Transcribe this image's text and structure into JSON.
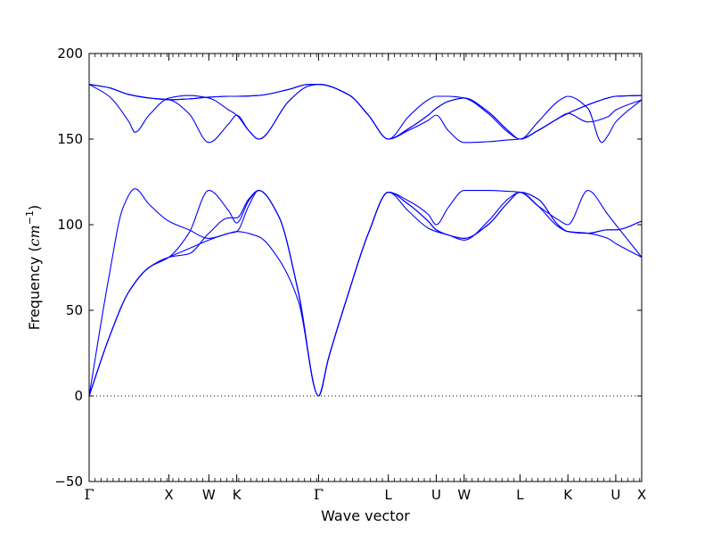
{
  "chart_data": {
    "type": "line",
    "xlabel": "Wave vector",
    "ylabel_text": "Frequency (",
    "ylabel_unit": "cm",
    "ylabel_sup": "−1",
    "ylabel_close": ")",
    "ylim": [
      -50,
      200
    ],
    "yticks": [
      -50,
      0,
      50,
      100,
      150,
      200
    ],
    "ytick_labels": [
      "−50",
      "0",
      "50",
      "100",
      "150",
      "200"
    ],
    "xlim": [
      0,
      27.7
    ],
    "high_symmetry_points": [
      {
        "label": "Γ",
        "x": 0
      },
      {
        "label": "X",
        "x": 4
      },
      {
        "label": "W",
        "x": 6
      },
      {
        "label": "K",
        "x": 7.4
      },
      {
        "label": "Γ",
        "x": 11.5
      },
      {
        "label": "L",
        "x": 15
      },
      {
        "label": "U",
        "x": 17.4
      },
      {
        "label": "W",
        "x": 18.8
      },
      {
        "label": "L",
        "x": 21.6
      },
      {
        "label": "K",
        "x": 24
      },
      {
        "label": "U",
        "x": 26.4
      },
      {
        "label": "X",
        "x": 27.7
      }
    ],
    "zero_line": true,
    "line_color": "#0000ff",
    "series": [
      {
        "points": [
          [
            0,
            0
          ],
          [
            1,
            34
          ],
          [
            2,
            61
          ],
          [
            3,
            75
          ],
          [
            4,
            81
          ],
          [
            5,
            86
          ],
          [
            6,
            91
          ],
          [
            7,
            95
          ],
          [
            7.4,
            96
          ],
          [
            8.5,
            93
          ],
          [
            9.5,
            80
          ],
          [
            10.5,
            55
          ],
          [
            11.5,
            0
          ],
          [
            12,
            22
          ],
          [
            13,
            60
          ],
          [
            14,
            95
          ],
          [
            15,
            119
          ],
          [
            16,
            112
          ],
          [
            17,
            102
          ],
          [
            17.4,
            97
          ],
          [
            18,
            94
          ],
          [
            18.8,
            92
          ],
          [
            20,
            100
          ],
          [
            21,
            113
          ],
          [
            21.6,
            119
          ],
          [
            22.5,
            115
          ],
          [
            23.5,
            100
          ],
          [
            24,
            96
          ],
          [
            25,
            95
          ],
          [
            26,
            97
          ],
          [
            26.4,
            97
          ],
          [
            27.7,
            102
          ]
        ]
      },
      {
        "points": [
          [
            0,
            0
          ],
          [
            1,
            34
          ],
          [
            2,
            61
          ],
          [
            3,
            75
          ],
          [
            4,
            81
          ],
          [
            5,
            83
          ],
          [
            6,
            95
          ],
          [
            7,
            104
          ],
          [
            7.4,
            104
          ],
          [
            8,
            115
          ],
          [
            8.5,
            120
          ],
          [
            9.5,
            105
          ],
          [
            10.5,
            60
          ],
          [
            11.5,
            0
          ],
          [
            12,
            22
          ],
          [
            13,
            60
          ],
          [
            14,
            95
          ],
          [
            15,
            119
          ],
          [
            16,
            108
          ],
          [
            17,
            98
          ],
          [
            17.4,
            96
          ],
          [
            18,
            94
          ],
          [
            18.8,
            91
          ],
          [
            20,
            102
          ],
          [
            21,
            115
          ],
          [
            21.6,
            119
          ],
          [
            22.5,
            111
          ],
          [
            23.5,
            99
          ],
          [
            24,
            96
          ],
          [
            25,
            95
          ],
          [
            26,
            92
          ],
          [
            26.4,
            89
          ],
          [
            27.7,
            81
          ]
        ]
      },
      {
        "points": [
          [
            0,
            0
          ],
          [
            1,
            70
          ],
          [
            1.7,
            110
          ],
          [
            2.3,
            121
          ],
          [
            3,
            112
          ],
          [
            4,
            102
          ],
          [
            5,
            97
          ],
          [
            6,
            92
          ],
          [
            7,
            95
          ],
          [
            7.4,
            96
          ],
          [
            8,
            111
          ],
          [
            8.5,
            120
          ],
          [
            9.5,
            105
          ],
          [
            10.5,
            60
          ],
          [
            11.5,
            0
          ],
          [
            12,
            22
          ],
          [
            13,
            60
          ],
          [
            14,
            95
          ],
          [
            15,
            119
          ],
          [
            16,
            114
          ],
          [
            17,
            106
          ],
          [
            17.4,
            100
          ],
          [
            18,
            110
          ],
          [
            18.8,
            120
          ],
          [
            20,
            120
          ],
          [
            21,
            119.5
          ],
          [
            21.6,
            119
          ],
          [
            22.5,
            111
          ],
          [
            23.5,
            103
          ],
          [
            24,
            100
          ],
          [
            25,
            120
          ],
          [
            26,
            106
          ],
          [
            26.4,
            100
          ],
          [
            27.7,
            81
          ]
        ]
      },
      {
        "points": [
          [
            0,
            0
          ],
          [
            1,
            34
          ],
          [
            2,
            61
          ],
          [
            3,
            75
          ],
          [
            4,
            81
          ],
          [
            5,
            95
          ],
          [
            6,
            120
          ],
          [
            7,
            108
          ],
          [
            7.4,
            101
          ],
          [
            8,
            114
          ],
          [
            8.5,
            120
          ],
          [
            9.5,
            105
          ],
          [
            10.5,
            60
          ],
          [
            11.5,
            0
          ],
          [
            12,
            22
          ],
          [
            13,
            60
          ],
          [
            14,
            95
          ],
          [
            15,
            119
          ],
          [
            16,
            112
          ],
          [
            17,
            102
          ],
          [
            17.4,
            97
          ],
          [
            18,
            94
          ],
          [
            18.8,
            92
          ],
          [
            20,
            100
          ],
          [
            21,
            113
          ],
          [
            21.6,
            119
          ],
          [
            22.5,
            115
          ],
          [
            23.5,
            100
          ],
          [
            24,
            96
          ],
          [
            25,
            95
          ],
          [
            26,
            97
          ],
          [
            26.4,
            97
          ],
          [
            27.7,
            102
          ]
        ]
      },
      {
        "points": [
          [
            0,
            182
          ],
          [
            1,
            180
          ],
          [
            2,
            176
          ],
          [
            3,
            174
          ],
          [
            4,
            173
          ],
          [
            5,
            173.5
          ],
          [
            6,
            174.5
          ],
          [
            7,
            175
          ],
          [
            7.4,
            175
          ],
          [
            8.5,
            175.5
          ],
          [
            10,
            179
          ],
          [
            11,
            182
          ],
          [
            11.5,
            182
          ],
          [
            13,
            176
          ],
          [
            14,
            164
          ],
          [
            15,
            150
          ],
          [
            16,
            156
          ],
          [
            17,
            164
          ],
          [
            17.4,
            168
          ],
          [
            18,
            172
          ],
          [
            18.8,
            174
          ],
          [
            20,
            166
          ],
          [
            21,
            155
          ],
          [
            21.6,
            150
          ],
          [
            22.5,
            155
          ],
          [
            23.5,
            162
          ],
          [
            24,
            165
          ],
          [
            25,
            170
          ],
          [
            26,
            174
          ],
          [
            26.4,
            175
          ],
          [
            27.7,
            175.5
          ]
        ]
      },
      {
        "points": [
          [
            0,
            182
          ],
          [
            1,
            175
          ],
          [
            2,
            160
          ],
          [
            2.3,
            154
          ],
          [
            3,
            164
          ],
          [
            4,
            174
          ],
          [
            5,
            175.5
          ],
          [
            6,
            174
          ],
          [
            7,
            167
          ],
          [
            7.4,
            164
          ],
          [
            8,
            155
          ],
          [
            8.5,
            150
          ],
          [
            10,
            172
          ],
          [
            11,
            181
          ],
          [
            11.5,
            182
          ],
          [
            13,
            176
          ],
          [
            14,
            164
          ],
          [
            15,
            150
          ],
          [
            16,
            156
          ],
          [
            17,
            164
          ],
          [
            17.4,
            168
          ],
          [
            18,
            172
          ],
          [
            18.8,
            174
          ],
          [
            20,
            166
          ],
          [
            21,
            155
          ],
          [
            21.6,
            150
          ],
          [
            22.5,
            155
          ],
          [
            23.5,
            162
          ],
          [
            24,
            165
          ],
          [
            25,
            170
          ],
          [
            26,
            174
          ],
          [
            26.4,
            175
          ],
          [
            27.7,
            175.5
          ]
        ]
      },
      {
        "points": [
          [
            0,
            182
          ],
          [
            1,
            180
          ],
          [
            2,
            176
          ],
          [
            3,
            174
          ],
          [
            4,
            173
          ],
          [
            5,
            165
          ],
          [
            6,
            148
          ],
          [
            7,
            159
          ],
          [
            7.4,
            164
          ],
          [
            8,
            155
          ],
          [
            8.5,
            150
          ],
          [
            10,
            172
          ],
          [
            11,
            181
          ],
          [
            11.5,
            182
          ],
          [
            13,
            176
          ],
          [
            14,
            164
          ],
          [
            15,
            150
          ],
          [
            16,
            163
          ],
          [
            17,
            173
          ],
          [
            17.4,
            175
          ],
          [
            18,
            175
          ],
          [
            18.8,
            174
          ],
          [
            20,
            165
          ],
          [
            21,
            154
          ],
          [
            21.6,
            150
          ],
          [
            22.5,
            160
          ],
          [
            23.5,
            172
          ],
          [
            24,
            175
          ],
          [
            25,
            168
          ],
          [
            25.7,
            148
          ],
          [
            26,
            152
          ],
          [
            26.4,
            160
          ],
          [
            27.7,
            173
          ]
        ]
      },
      {
        "points": [
          [
            0,
            182
          ],
          [
            1,
            180
          ],
          [
            2,
            176
          ],
          [
            3,
            174
          ],
          [
            4,
            173
          ],
          [
            5,
            173.5
          ],
          [
            6,
            174.5
          ],
          [
            7,
            175
          ],
          [
            7.4,
            175
          ],
          [
            8.5,
            175.5
          ],
          [
            10,
            179
          ],
          [
            11,
            182
          ],
          [
            11.5,
            182
          ],
          [
            13,
            176
          ],
          [
            14,
            164
          ],
          [
            15,
            150
          ],
          [
            16,
            155
          ],
          [
            17,
            161
          ],
          [
            17.4,
            164
          ],
          [
            18,
            155
          ],
          [
            18.8,
            148
          ],
          [
            20,
            148.5
          ],
          [
            21,
            149.5
          ],
          [
            21.6,
            150
          ],
          [
            22.5,
            155
          ],
          [
            23.5,
            162
          ],
          [
            24,
            165
          ],
          [
            25,
            160
          ],
          [
            26,
            163
          ],
          [
            26.4,
            167
          ],
          [
            27.7,
            173
          ]
        ]
      }
    ]
  }
}
